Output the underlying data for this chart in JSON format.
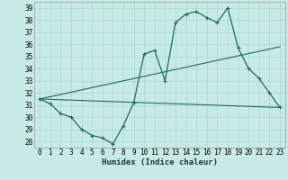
{
  "xlabel": "Humidex (Indice chaleur)",
  "bg_color": "#c8eae6",
  "grid_color": "#a8d8d4",
  "line_color": "#1a6b5a",
  "x_values": [
    0,
    1,
    2,
    3,
    4,
    5,
    6,
    7,
    8,
    9,
    10,
    11,
    12,
    13,
    14,
    15,
    16,
    17,
    18,
    19,
    20,
    21,
    22,
    23
  ],
  "line1": [
    31.5,
    31.1,
    30.3,
    30.0,
    29.0,
    28.5,
    28.3,
    27.8,
    29.3,
    31.2,
    35.2,
    35.5,
    33.0,
    37.8,
    38.5,
    38.7,
    38.2,
    37.8,
    39.0,
    35.7,
    34.0,
    33.2,
    32.0,
    30.8
  ],
  "line2_x": [
    0,
    23
  ],
  "line2_y": [
    31.5,
    35.8
  ],
  "line3_x": [
    0,
    23
  ],
  "line3_y": [
    31.5,
    30.8
  ],
  "ylim": [
    27.5,
    39.5
  ],
  "yticks": [
    28,
    29,
    30,
    31,
    32,
    33,
    34,
    35,
    36,
    37,
    38,
    39
  ],
  "xticks": [
    0,
    1,
    2,
    3,
    4,
    5,
    6,
    7,
    8,
    9,
    10,
    11,
    12,
    13,
    14,
    15,
    16,
    17,
    18,
    19,
    20,
    21,
    22,
    23
  ],
  "xlabel_fontsize": 6.5,
  "tick_fontsize": 5.5
}
